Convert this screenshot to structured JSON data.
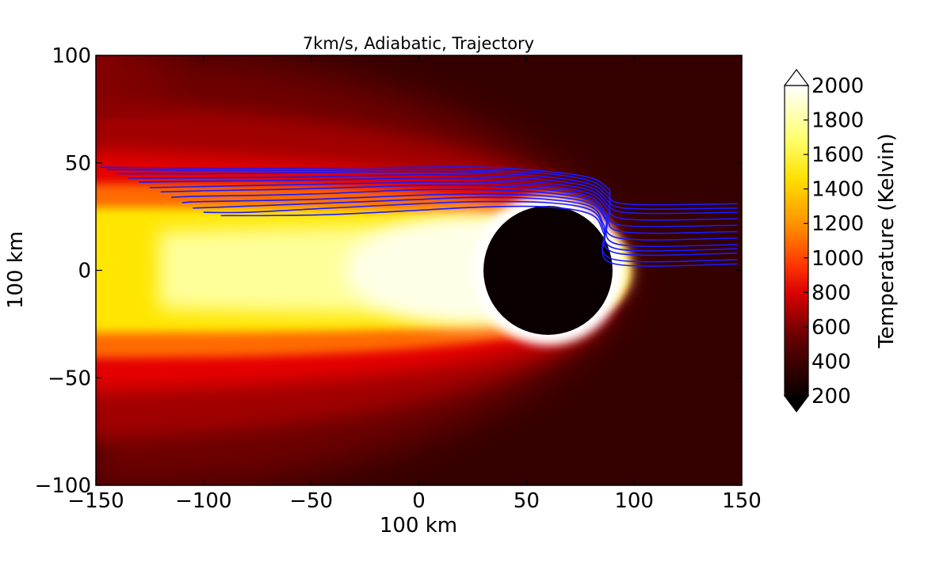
{
  "chart_data": {
    "type": "heatmap",
    "title": "7km/s, Adiabatic, Trajectory",
    "xlabel": "100 km",
    "ylabel": "100 km",
    "xlim": [
      -150,
      150
    ],
    "ylim": [
      -100,
      100
    ],
    "x_ticks": [
      -150,
      -100,
      -50,
      0,
      50,
      100,
      150
    ],
    "y_ticks": [
      -100,
      -50,
      0,
      50,
      100
    ],
    "x_tick_labels": [
      "−150",
      "−100",
      "−50",
      "0",
      "50",
      "100",
      "150"
    ],
    "y_tick_labels": [
      "−100",
      "−50",
      "0",
      "50",
      "100"
    ],
    "colorbar": {
      "label": "Temperature (Kelvin)",
      "range": [
        200,
        2000
      ],
      "ticks": [
        200,
        400,
        600,
        800,
        1000,
        1200,
        1400,
        1600,
        1800,
        2000
      ],
      "extend": "both",
      "colormap": "hot"
    },
    "features": {
      "body": {
        "center": [
          60,
          0
        ],
        "radius": 30,
        "temperature": 200
      },
      "ambient_temperature": 250
    },
    "series": [
      {
        "x": [
          148,
          95,
          88,
          80,
          60,
          30,
          0,
          -50,
          -100,
          -148
        ],
        "y": [
          31,
          31,
          38,
          43,
          46,
          48,
          48,
          47.5,
          47.5,
          48
        ]
      },
      {
        "x": [
          148,
          95,
          88,
          80,
          60,
          30,
          0,
          -50,
          -100,
          -145
        ],
        "y": [
          29,
          29,
          36,
          41.5,
          45,
          46.5,
          47,
          46.5,
          46.5,
          47
        ]
      },
      {
        "x": [
          148,
          95,
          88,
          80,
          60,
          30,
          0,
          -50,
          -100,
          -140
        ],
        "y": [
          27,
          27,
          34,
          40,
          43.5,
          45.5,
          46,
          45.5,
          45,
          45
        ]
      },
      {
        "x": [
          148,
          95,
          88,
          80,
          60,
          30,
          0,
          -50,
          -100,
          -135
        ],
        "y": [
          24,
          24,
          32,
          38.5,
          42,
          44,
          44.5,
          43.5,
          43,
          43
        ]
      },
      {
        "x": [
          148,
          94,
          88,
          80,
          60,
          30,
          0,
          -50,
          -100,
          -130
        ],
        "y": [
          21,
          21,
          30,
          37,
          40.5,
          42.5,
          43,
          42,
          41.5,
          41
        ]
      },
      {
        "x": [
          148,
          94,
          88,
          80,
          60,
          30,
          0,
          -50,
          -100,
          -125
        ],
        "y": [
          18,
          18,
          28,
          35.5,
          39,
          41,
          41,
          40,
          39,
          38.5
        ]
      },
      {
        "x": [
          148,
          93,
          87,
          80,
          60,
          30,
          0,
          -50,
          -100,
          -120
        ],
        "y": [
          15,
          15,
          26,
          34,
          37.5,
          39.5,
          39.5,
          38,
          37,
          36.5
        ]
      },
      {
        "x": [
          148,
          93,
          87,
          80,
          60,
          30,
          0,
          -50,
          -100,
          -115
        ],
        "y": [
          12,
          12,
          24,
          32.5,
          36,
          37.5,
          37.5,
          35.5,
          34.5,
          34
        ]
      },
      {
        "x": [
          148,
          92,
          87,
          80,
          60,
          30,
          0,
          -50,
          -100,
          -110
        ],
        "y": [
          10,
          10,
          23,
          31,
          34.5,
          35.5,
          35,
          33,
          32,
          31.5
        ]
      },
      {
        "x": [
          148,
          92,
          86,
          80,
          60,
          30,
          0,
          -50,
          -90,
          -105
        ],
        "y": [
          8,
          8,
          21,
          29.5,
          33,
          34,
          33,
          31,
          29.5,
          29
        ]
      },
      {
        "x": [
          148,
          91,
          86,
          80,
          60,
          30,
          0,
          -50,
          -80,
          -100
        ],
        "y": [
          5,
          5,
          19,
          28,
          31.5,
          32,
          31,
          28.5,
          27,
          27
        ]
      },
      {
        "x": [
          148,
          91,
          86,
          80,
          60,
          30,
          0,
          -40,
          -70,
          -92
        ],
        "y": [
          3,
          3,
          17,
          26,
          29.5,
          29.5,
          28,
          26,
          25.5,
          25.5
        ]
      }
    ]
  }
}
